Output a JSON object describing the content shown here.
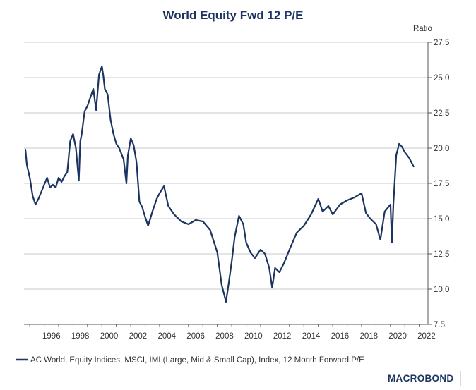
{
  "chart_data": {
    "type": "line",
    "title": "World Equity Fwd 12 P/E",
    "ylabel": "Ratio",
    "xlabel": "",
    "ylim": [
      7.5,
      27.5
    ],
    "xlim": [
      1994.6,
      2022.6
    ],
    "grid": true,
    "legend_position": "bottom-left",
    "x_ticks": [
      "1996",
      "1998",
      "2000",
      "2002",
      "2004",
      "2006",
      "2008",
      "2010",
      "2012",
      "2014",
      "2016",
      "2018",
      "2020",
      "2022"
    ],
    "y_ticks": [
      "7.5",
      "10.0",
      "12.5",
      "15.0",
      "17.5",
      "20.0",
      "22.5",
      "25.0",
      "27.5"
    ],
    "series": [
      {
        "name": "AC World, Equity Indices, MSCI, IMI (Large, Mid & Small Cap), Index, 12 Month Forward P/E",
        "color": "#1c3560",
        "x": [
          1994.7,
          1994.8,
          1995.0,
          1995.2,
          1995.4,
          1995.6,
          1995.8,
          1996.0,
          1996.2,
          1996.4,
          1996.6,
          1996.8,
          1997.0,
          1997.2,
          1997.4,
          1997.6,
          1997.8,
          1998.0,
          1998.2,
          1998.4,
          1998.5,
          1998.6,
          1998.8,
          1999.0,
          1999.2,
          1999.4,
          1999.6,
          1999.8,
          2000.0,
          2000.1,
          2000.2,
          2000.4,
          2000.6,
          2000.8,
          2001.0,
          2001.2,
          2001.5,
          2001.7,
          2001.8,
          2002.0,
          2002.2,
          2002.4,
          2002.6,
          2002.8,
          2003.0,
          2003.2,
          2003.5,
          2003.8,
          2004.0,
          2004.3,
          2004.6,
          2005.0,
          2005.5,
          2006.0,
          2006.5,
          2007.0,
          2007.5,
          2008.0,
          2008.3,
          2008.6,
          2008.8,
          2009.0,
          2009.2,
          2009.5,
          2009.8,
          2010.0,
          2010.3,
          2010.6,
          2011.0,
          2011.3,
          2011.6,
          2011.8,
          2012.0,
          2012.3,
          2012.6,
          2013.0,
          2013.5,
          2014.0,
          2014.5,
          2015.0,
          2015.3,
          2015.7,
          2016.0,
          2016.5,
          2017.0,
          2017.5,
          2018.0,
          2018.3,
          2018.6,
          2019.0,
          2019.3,
          2019.6,
          2020.0,
          2020.1,
          2020.2,
          2020.4,
          2020.6,
          2020.8,
          2021.0,
          2021.3,
          2021.6
        ],
        "values": [
          19.9,
          18.8,
          17.9,
          16.6,
          16.0,
          16.4,
          16.9,
          17.4,
          17.9,
          17.2,
          17.4,
          17.2,
          17.9,
          17.6,
          18.0,
          18.3,
          20.5,
          21.0,
          20.0,
          17.7,
          20.5,
          21.0,
          22.6,
          23.0,
          23.6,
          24.2,
          22.7,
          25.2,
          25.8,
          25.1,
          24.2,
          23.8,
          22.0,
          21.0,
          20.3,
          20.0,
          19.2,
          17.5,
          19.5,
          20.7,
          20.2,
          19.0,
          16.2,
          15.8,
          15.1,
          14.5,
          15.5,
          16.4,
          16.8,
          17.3,
          15.9,
          15.3,
          14.8,
          14.6,
          14.9,
          14.8,
          14.2,
          12.6,
          10.3,
          9.1,
          10.5,
          12.0,
          13.7,
          15.2,
          14.6,
          13.3,
          12.6,
          12.2,
          12.8,
          12.5,
          11.5,
          10.1,
          11.5,
          11.2,
          11.8,
          12.8,
          14.0,
          14.5,
          15.3,
          16.4,
          15.5,
          15.9,
          15.3,
          16.0,
          16.3,
          16.5,
          16.8,
          15.4,
          15.0,
          14.6,
          13.5,
          15.5,
          16.0,
          13.3,
          16.0,
          19.5,
          20.3,
          20.1,
          19.7,
          19.3,
          18.7
        ]
      }
    ]
  },
  "brand": "MACROBOND"
}
